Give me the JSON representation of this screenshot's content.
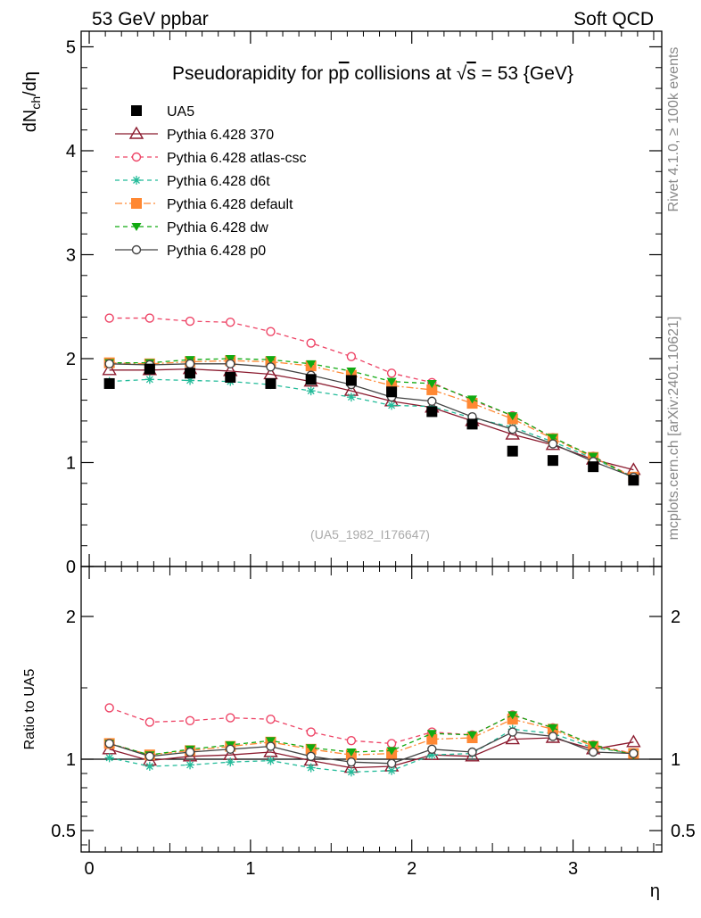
{
  "header": {
    "left_label": "53 GeV ppbar",
    "right_label": "Soft QCD"
  },
  "side_labels": {
    "rivet": "Rivet 4.1.0, ≥ 100k events",
    "mcplots": "mcplots.cern.ch [arXiv:2401.10621]"
  },
  "colors": {
    "ua5": "#000000",
    "p370": "#8b1a2e",
    "atlas_csc": "#ee4466",
    "d6t": "#22bb99",
    "default": "#ff8833",
    "dw": "#11aa11",
    "p0": "#444444"
  },
  "chart_data": [
    {
      "type": "scatter",
      "panel": "main",
      "title": "Pseudorapidity for pp̅ collisions at √s = 53 {GeV}",
      "title_parts": {
        "prefix": "Pseudorapidity for ",
        "p1": "p",
        "p2": "p",
        "mid": " collisions at ",
        "sqrt": "√",
        "s": "s",
        "suffix": " = 53 {GeV}"
      },
      "ylabel": "dN_ch/dη",
      "ylabel_parts": {
        "main": "dN",
        "sub": "ch",
        "rest": "/dη"
      },
      "xlabel": "η",
      "xlim": [
        -0.05,
        3.55
      ],
      "ylim": [
        0,
        5.15
      ],
      "yticks": [
        0,
        1,
        2,
        3,
        4,
        5
      ],
      "ytick_labels": [
        "0",
        "1",
        "2",
        "3",
        "4",
        "5"
      ],
      "xticks": [
        0,
        1,
        2,
        3
      ],
      "xtick_labels": [
        "0",
        "1",
        "2",
        "3"
      ],
      "watermark": "(UA5_1982_I176647)",
      "x": [
        0.125,
        0.375,
        0.625,
        0.875,
        1.125,
        1.375,
        1.625,
        1.875,
        2.125,
        2.375,
        2.625,
        2.875,
        3.125,
        3.375
      ],
      "series": [
        {
          "name": "UA5",
          "key": "ua5",
          "style": "data",
          "marker": "square-filled",
          "values": [
            1.76,
            1.9,
            1.86,
            1.82,
            1.76,
            1.8,
            1.79,
            1.68,
            1.49,
            1.37,
            1.11,
            1.02,
            0.96,
            0.83
          ]
        },
        {
          "name": "Pythia 6.428 370",
          "key": "p370",
          "style": "solid",
          "marker": "triangle-open",
          "values": [
            1.89,
            1.89,
            1.9,
            1.88,
            1.85,
            1.78,
            1.69,
            1.59,
            1.53,
            1.4,
            1.27,
            1.17,
            1.03,
            0.93
          ]
        },
        {
          "name": "Pythia 6.428 atlas-csc",
          "key": "atlas_csc",
          "style": "dashed",
          "marker": "circle-open",
          "values": [
            2.39,
            2.39,
            2.36,
            2.35,
            2.26,
            2.15,
            2.02,
            1.86,
            1.77,
            1.6,
            1.45,
            1.24,
            1.06,
            0.86
          ]
        },
        {
          "name": "Pythia 6.428 d6t",
          "key": "d6t",
          "style": "dashed",
          "marker": "star",
          "values": [
            1.78,
            1.8,
            1.79,
            1.78,
            1.75,
            1.69,
            1.63,
            1.55,
            1.54,
            1.43,
            1.34,
            1.2,
            1.04,
            0.86
          ]
        },
        {
          "name": "Pythia 6.428 default",
          "key": "default",
          "style": "dashdot",
          "marker": "square-filled",
          "values": [
            1.96,
            1.95,
            1.97,
            1.98,
            1.97,
            1.93,
            1.84,
            1.74,
            1.7,
            1.57,
            1.42,
            1.23,
            1.05,
            0.86
          ]
        },
        {
          "name": "Pythia 6.428 dw",
          "key": "dw",
          "style": "dashed",
          "marker": "triangle-down-filled",
          "values": [
            1.96,
            1.96,
            1.99,
            2.0,
            1.99,
            1.95,
            1.88,
            1.78,
            1.76,
            1.61,
            1.45,
            1.24,
            1.06,
            0.85
          ]
        },
        {
          "name": "Pythia 6.428 p0",
          "key": "p0",
          "style": "solid",
          "marker": "circle-open",
          "values": [
            1.95,
            1.94,
            1.95,
            1.95,
            1.92,
            1.84,
            1.75,
            1.63,
            1.59,
            1.44,
            1.32,
            1.18,
            1.01,
            0.86
          ]
        }
      ]
    },
    {
      "type": "line",
      "panel": "ratio",
      "ylabel": "Ratio to UA5",
      "ylim": [
        0.35,
        2.35
      ],
      "yticks": [
        0.5,
        1,
        2
      ],
      "ytick_labels": [
        "0.5",
        "1",
        "2"
      ],
      "reference_line": 1,
      "x": [
        0.125,
        0.375,
        0.625,
        0.875,
        1.125,
        1.375,
        1.625,
        1.875,
        2.125,
        2.375,
        2.625,
        2.875,
        3.125,
        3.375
      ],
      "series": [
        {
          "name": "Pythia 6.428 370",
          "key": "p370",
          "style": "solid",
          "marker": "triangle-open",
          "values": [
            1.07,
            0.99,
            1.02,
            1.03,
            1.05,
            0.99,
            0.94,
            0.95,
            1.03,
            1.02,
            1.14,
            1.15,
            1.07,
            1.12
          ]
        },
        {
          "name": "Pythia 6.428 atlas-csc",
          "key": "atlas_csc",
          "style": "dashed",
          "marker": "circle-open",
          "values": [
            1.36,
            1.26,
            1.27,
            1.29,
            1.28,
            1.19,
            1.13,
            1.11,
            1.19,
            1.17,
            1.31,
            1.22,
            1.1,
            1.04
          ]
        },
        {
          "name": "Pythia 6.428 d6t",
          "key": "d6t",
          "style": "dashed",
          "marker": "star",
          "values": [
            1.01,
            0.95,
            0.96,
            0.98,
            0.99,
            0.94,
            0.91,
            0.92,
            1.03,
            1.04,
            1.21,
            1.18,
            1.08,
            1.04
          ]
        },
        {
          "name": "Pythia 6.428 default",
          "key": "default",
          "style": "dashdot",
          "marker": "square-filled",
          "values": [
            1.11,
            1.03,
            1.06,
            1.09,
            1.12,
            1.07,
            1.03,
            1.04,
            1.14,
            1.15,
            1.28,
            1.21,
            1.09,
            1.04
          ]
        },
        {
          "name": "Pythia 6.428 dw",
          "key": "dw",
          "style": "dashed",
          "marker": "triangle-down-filled",
          "values": [
            1.11,
            1.03,
            1.07,
            1.1,
            1.13,
            1.08,
            1.05,
            1.06,
            1.18,
            1.17,
            1.31,
            1.22,
            1.1,
            1.03
          ]
        },
        {
          "name": "Pythia 6.428 p0",
          "key": "p0",
          "style": "solid",
          "marker": "circle-open",
          "values": [
            1.11,
            1.02,
            1.05,
            1.07,
            1.09,
            1.02,
            0.98,
            0.97,
            1.07,
            1.05,
            1.19,
            1.16,
            1.05,
            1.04
          ]
        }
      ]
    }
  ]
}
